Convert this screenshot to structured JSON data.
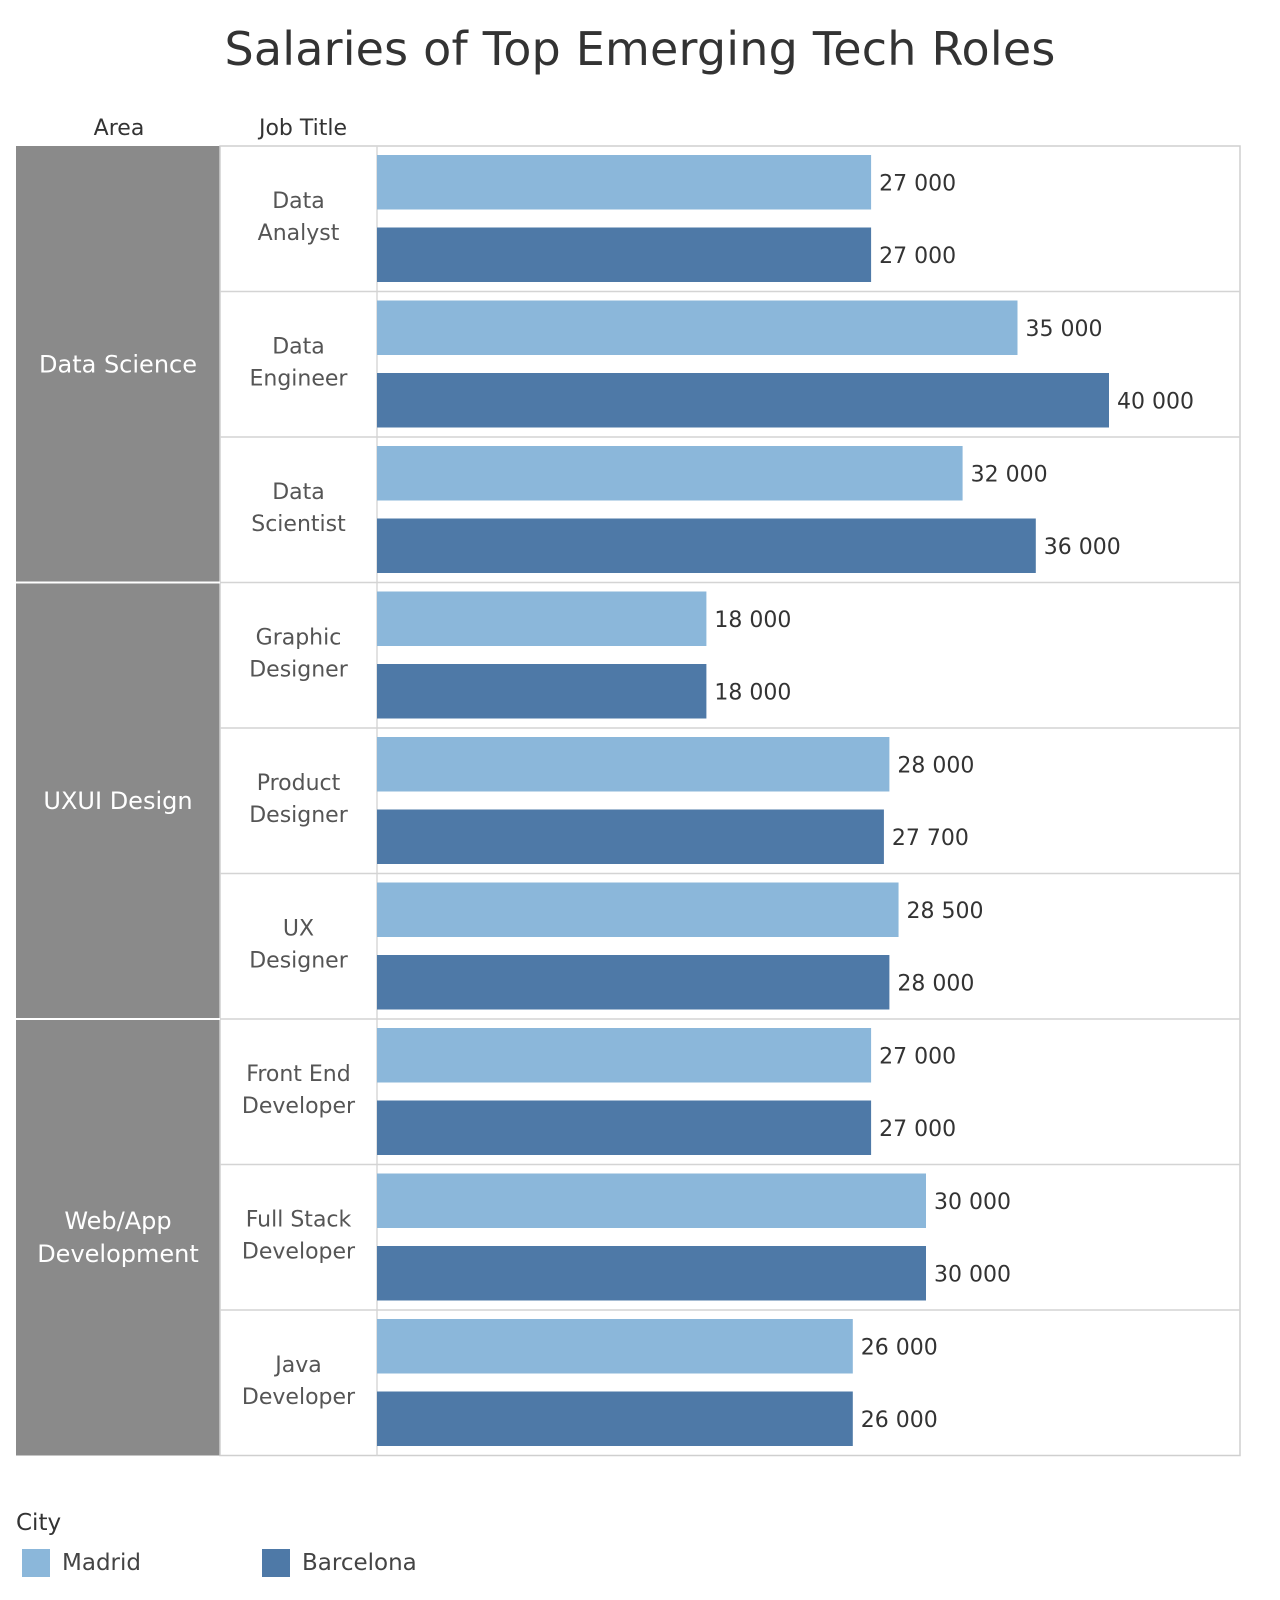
{
  "chart_data": {
    "type": "bar",
    "orientation": "horizontal",
    "title": "Salaries of Top Emerging Tech Roles",
    "column_headers": {
      "area": "Area",
      "job_title": "Job Title"
    },
    "areas": [
      {
        "name": "Data Science",
        "label_lines": [
          "Data Science"
        ],
        "jobs": [
          "Data Analyst",
          "Data Engineer",
          "Data Scientist"
        ]
      },
      {
        "name": "UXUI Design",
        "label_lines": [
          "UXUI Design"
        ],
        "jobs": [
          "Graphic Designer",
          "Product Designer",
          "UX Designer"
        ]
      },
      {
        "name": "Web/App Development",
        "label_lines": [
          "Web/App",
          "Development"
        ],
        "jobs": [
          "Front End Developer",
          "Full Stack Developer",
          "Java Developer"
        ]
      }
    ],
    "categories": [
      {
        "label_lines": [
          "Data",
          "Analyst"
        ]
      },
      {
        "label_lines": [
          "Data",
          "Engineer"
        ]
      },
      {
        "label_lines": [
          "Data",
          "Scientist"
        ]
      },
      {
        "label_lines": [
          "Graphic",
          "Designer"
        ]
      },
      {
        "label_lines": [
          "Product",
          "Designer"
        ]
      },
      {
        "label_lines": [
          "UX",
          "Designer"
        ]
      },
      {
        "label_lines": [
          "Front End",
          "Developer"
        ]
      },
      {
        "label_lines": [
          "Full Stack",
          "Developer"
        ]
      },
      {
        "label_lines": [
          "Java",
          "Developer"
        ]
      }
    ],
    "series": [
      {
        "name": "Madrid",
        "color": "#8bb7da",
        "values": [
          27000,
          35000,
          32000,
          18000,
          28000,
          28500,
          27000,
          30000,
          26000
        ],
        "labels": [
          "27 000",
          "35 000",
          "32 000",
          "18 000",
          "28 000",
          "28 500",
          "27 000",
          "30 000",
          "26 000"
        ]
      },
      {
        "name": "Barcelona",
        "color": "#4e79a7",
        "values": [
          27000,
          40000,
          36000,
          18000,
          27700,
          28000,
          27000,
          30000,
          26000
        ],
        "labels": [
          "27 000",
          "40 000",
          "36 000",
          "18 000",
          "27 700",
          "28 000",
          "27 000",
          "30 000",
          "26 000"
        ]
      }
    ],
    "xlim": [
      0,
      45000
    ],
    "legend": {
      "title": "City",
      "position": "bottom-left"
    },
    "area_header_color": "#8a8a8a",
    "grid": false
  }
}
